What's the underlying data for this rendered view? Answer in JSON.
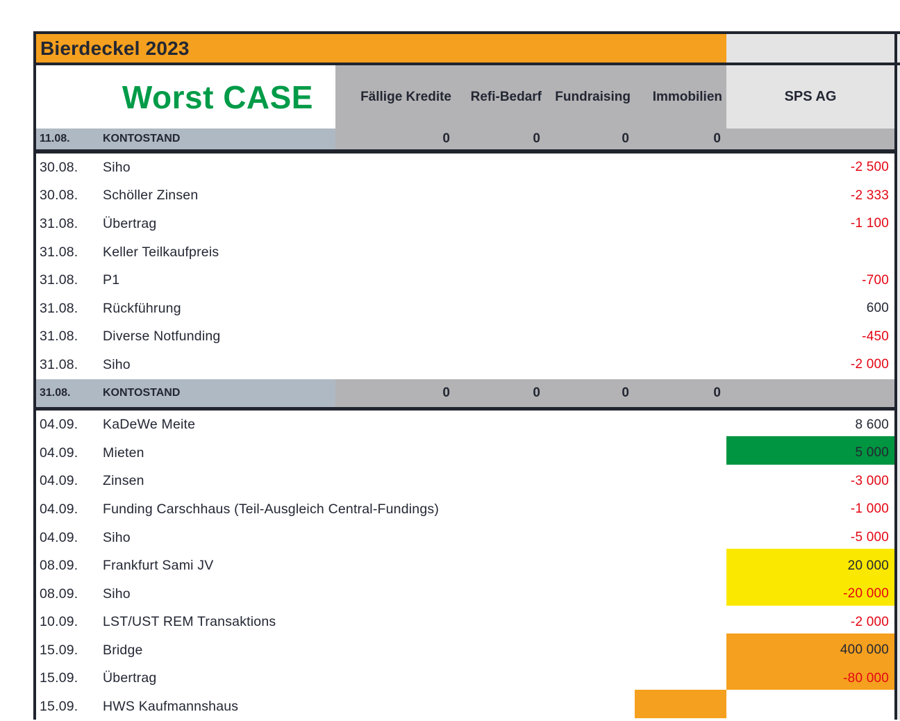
{
  "title": "Bierdeckel 2023",
  "scenario": "Worst CASE",
  "columns": [
    "Fällige Kredite",
    "Refi-Bedarf",
    "Fundraising",
    "Immobilien",
    "SPS AG"
  ],
  "kontostand_top": {
    "date": "11.08.",
    "label": "KONTOSTAND",
    "cols": [
      "0",
      "0",
      "0",
      "0"
    ]
  },
  "rows": [
    {
      "date": "30.08.",
      "label": "Siho",
      "value": "-2 500"
    },
    {
      "date": "30.08.",
      "label": "Schöller Zinsen",
      "value": "-2 333"
    },
    {
      "date": "31.08.",
      "label": "Übertrag",
      "value": "-1 100"
    },
    {
      "date": "31.08.",
      "label": "Keller Teilkaufpreis",
      "value": ""
    },
    {
      "date": "31.08.",
      "label": "P1",
      "value": "-700"
    },
    {
      "date": "31.08.",
      "label": "Rückführung",
      "value": "600"
    },
    {
      "date": "31.08.",
      "label": "Diverse Notfunding",
      "value": "-450"
    },
    {
      "date": "31.08.",
      "label": "Siho",
      "value": "-2 000"
    },
    {
      "date": "31.08.",
      "label": "KONTOSTAND",
      "cols": [
        "0",
        "0",
        "0",
        "0"
      ],
      "value": ""
    },
    {
      "date": "04.09.",
      "label": "KaDeWe Meite",
      "value": "8 600"
    },
    {
      "date": "04.09.",
      "label": "Mieten",
      "value": "5 000",
      "highlight": "green"
    },
    {
      "date": "04.09.",
      "label": "Zinsen",
      "value": "-3 000"
    },
    {
      "date": "04.09.",
      "label": "Funding Carschhaus (Teil-Ausgleich Central-Fundings)",
      "value": "-1 000"
    },
    {
      "date": "04.09.",
      "label": "Siho",
      "value": "-5 000"
    },
    {
      "date": "08.09.",
      "label": "Frankfurt Sami JV",
      "value": "20 000",
      "highlight": "yellow"
    },
    {
      "date": "08.09.",
      "label": "Siho",
      "value": "-20 000",
      "highlight": "yellow"
    },
    {
      "date": "10.09.",
      "label": "LST/UST REM Transaktions",
      "value": "-2 000"
    },
    {
      "date": "15.09.",
      "label": "Bridge",
      "value": "400 000",
      "highlight": "orange"
    },
    {
      "date": "15.09.",
      "label": "Übertrag",
      "value": "-80 000",
      "highlight": "orange"
    },
    {
      "date": "15.09.",
      "label": "HWS Kaufmannshaus",
      "value": "",
      "highlight_immobilien": "orange"
    }
  ],
  "colors": {
    "banner_orange": "#f5a01e",
    "cell_orange": "#f5a01e",
    "cell_green": "#009540",
    "cell_yellow": "#fbe800",
    "title_green": "#009b48",
    "negative_red": "#e30613",
    "header_gray": "#b3b3b5",
    "kontostand_bluegray": "#afb9c3",
    "sps_header_lightgray": "#e4e4e5",
    "text_dark": "#232733"
  }
}
